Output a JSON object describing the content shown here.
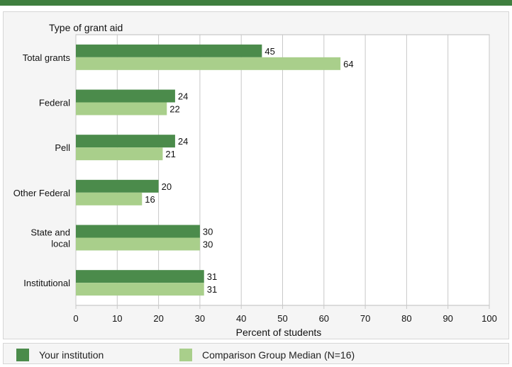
{
  "colors": {
    "accent_bar": "#3f7f3f",
    "series_primary": "#4b8b4b",
    "series_comparison": "#a9cf8b",
    "panel_background": "#f5f5f5",
    "gridline": "#c8c8c8"
  },
  "chart_data": {
    "type": "bar",
    "orientation": "horizontal",
    "ylabel": "Type of grant aid",
    "xlabel": "Percent of students",
    "categories": [
      "Total grants",
      "Federal",
      "Pell",
      "Other Federal",
      "State and local",
      "Institutional"
    ],
    "series": [
      {
        "name": "Your institution",
        "values": [
          45,
          24,
          24,
          20,
          30,
          31
        ]
      },
      {
        "name": "Comparison Group Median (N=16)",
        "values": [
          64,
          22,
          21,
          16,
          30,
          31
        ]
      }
    ],
    "xlim": [
      0,
      100
    ],
    "xticks": [
      0,
      10,
      20,
      30,
      40,
      50,
      60,
      70,
      80,
      90,
      100
    ],
    "grid": true,
    "legend": "bottom"
  },
  "legend": {
    "primary_label": "Your institution",
    "comparison_label": "Comparison Group Median (N=16)"
  }
}
